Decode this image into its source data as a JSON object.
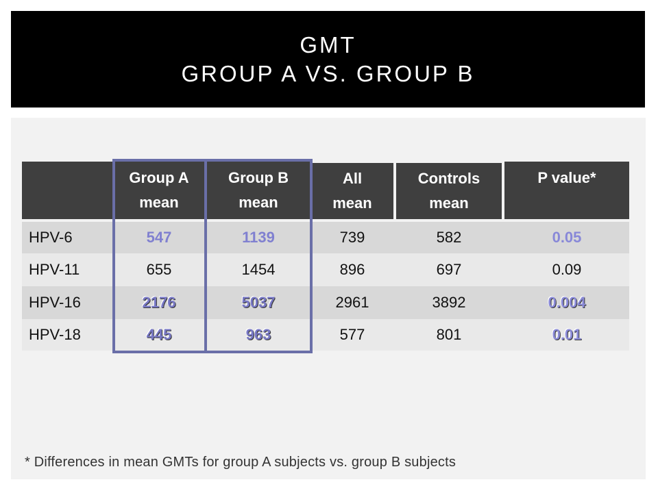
{
  "slide": {
    "title_line1": "GMT",
    "title_line2": "Group A vs. Group B",
    "footnote": "* Differences in mean GMTs for group A subjects vs. group B subjects"
  },
  "table": {
    "headers": [
      {
        "line1": "Group A",
        "line2": "mean"
      },
      {
        "line1": "Group B",
        "line2": "mean"
      },
      {
        "line1": "All",
        "line2": "mean"
      },
      {
        "line1": "Controls",
        "line2": "mean"
      },
      {
        "line1": "P value*",
        "line2": ""
      }
    ],
    "rows": [
      {
        "label": "HPV-6",
        "group_a": "547",
        "group_b": "1139",
        "all": "739",
        "controls": "582",
        "p": "0.05"
      },
      {
        "label": "HPV-11",
        "group_a": "655",
        "group_b": "1454",
        "all": "896",
        "controls": "697",
        "p": "0.09"
      },
      {
        "label": "HPV-16",
        "group_a": "2176",
        "group_b": "5037",
        "all": "2961",
        "controls": "3892",
        "p": "0.004"
      },
      {
        "label": "HPV-18",
        "group_a": "445",
        "group_b": "963",
        "all": "577",
        "controls": "801",
        "p": "0.01"
      }
    ]
  },
  "colors": {
    "title_bg": "#000000",
    "header_bg": "#3f3f3f",
    "highlight_value": "#8080d0",
    "group_frame": "#6a6fa8"
  }
}
